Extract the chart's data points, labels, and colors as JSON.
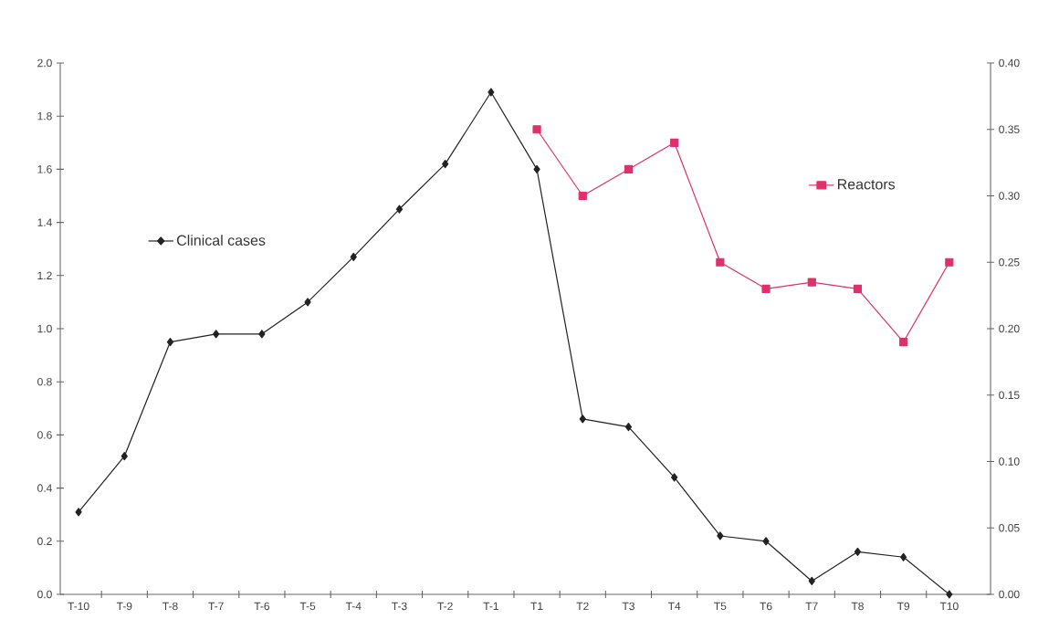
{
  "chart_data": {
    "type": "line",
    "categories": [
      "T-10",
      "T-9",
      "T-8",
      "T-7",
      "T-6",
      "T-5",
      "T-4",
      "T-3",
      "T-2",
      "T-1",
      "T1",
      "T2",
      "T3",
      "T4",
      "T5",
      "T6",
      "T7",
      "T8",
      "T9",
      "T10"
    ],
    "series": [
      {
        "name": "Clinical cases",
        "color": "#222222",
        "marker": "diamond",
        "values": [
          0.31,
          0.52,
          0.95,
          0.98,
          0.98,
          1.1,
          1.27,
          1.45,
          1.62,
          1.89,
          1.6,
          0.66,
          0.63,
          0.44,
          0.22,
          0.2,
          0.05,
          0.16,
          0.14,
          0.0
        ]
      },
      {
        "name": "Reactors",
        "color": "#e0306a",
        "marker": "square",
        "axis": "y2",
        "values": [
          null,
          null,
          null,
          null,
          null,
          null,
          null,
          null,
          null,
          null,
          0.35,
          0.3,
          0.32,
          0.34,
          0.25,
          0.23,
          0.235,
          0.23,
          0.19,
          0.25
        ]
      }
    ],
    "ylim": [
      0,
      2.0
    ],
    "yticks": [
      {
        "value": 0,
        "label": "0.0"
      },
      {
        "value": 0.2,
        "label": "0.2"
      },
      {
        "value": 0.4,
        "label": "0.4"
      },
      {
        "value": 0.6,
        "label": "0.6"
      },
      {
        "value": 0.8,
        "label": "0.8"
      },
      {
        "value": 1.0,
        "label": "1.0"
      },
      {
        "value": 1.2,
        "label": "1.2"
      },
      {
        "value": 1.4,
        "label": "1.4"
      },
      {
        "value": 1.6,
        "label": "1.6"
      },
      {
        "value": 1.8,
        "label": "1.8"
      },
      {
        "value": 2.0,
        "label": "2.0"
      }
    ],
    "y2lim": [
      0,
      0.4
    ],
    "y2ticks": [
      {
        "value": 0,
        "label": "0.00"
      },
      {
        "value": 0.05,
        "label": "0.05"
      },
      {
        "value": 0.1,
        "label": "0.10"
      },
      {
        "value": 0.15,
        "label": "0.15"
      },
      {
        "value": 0.2,
        "label": "0.20"
      },
      {
        "value": 0.25,
        "label": "0.25"
      },
      {
        "value": 0.3,
        "label": "0.30"
      },
      {
        "value": 0.35,
        "label": "0.35"
      },
      {
        "value": 0.4,
        "label": "0.40"
      }
    ],
    "grid": false,
    "legend": "left",
    "line_style": "solid"
  }
}
